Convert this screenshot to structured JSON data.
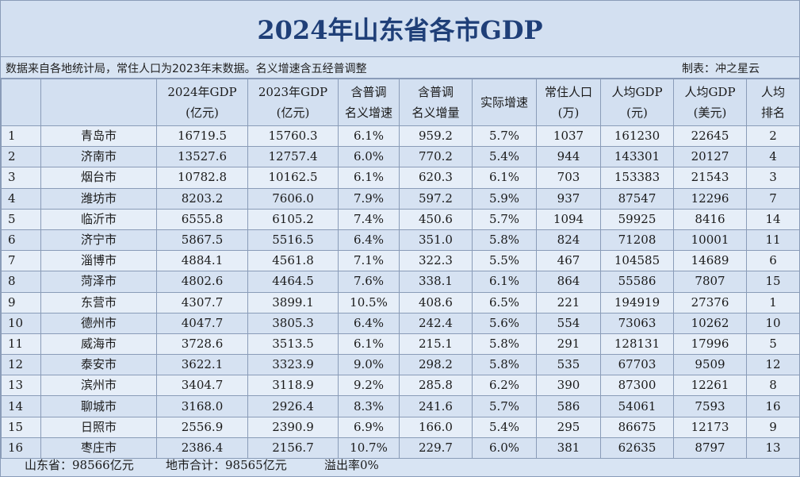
{
  "title": "2024年山东省各市GDP",
  "source_note": "数据来自各地统计局，常住人口为2023年末数据。名义增速含五经普调整",
  "maker": "制表：冲之星云",
  "columns": [
    {
      "lines": [
        ""
      ]
    },
    {
      "lines": [
        ""
      ]
    },
    {
      "lines": [
        "2024年GDP",
        "(亿元)"
      ]
    },
    {
      "lines": [
        "2023年GDP",
        "(亿元)"
      ]
    },
    {
      "lines": [
        "含普调",
        "名义增速"
      ]
    },
    {
      "lines": [
        "含普调",
        "名义增量"
      ]
    },
    {
      "lines": [
        "实际增速"
      ]
    },
    {
      "lines": [
        "常住人口",
        "(万)"
      ]
    },
    {
      "lines": [
        "人均GDP",
        "(元)"
      ]
    },
    {
      "lines": [
        "人均GDP",
        "(美元)"
      ]
    },
    {
      "lines": [
        "人均",
        "排名"
      ]
    }
  ],
  "rows": [
    [
      "1",
      "青岛市",
      "16719.5",
      "15760.3",
      "6.1%",
      "959.2",
      "5.7%",
      "1037",
      "161230",
      "22645",
      "2"
    ],
    [
      "2",
      "济南市",
      "13527.6",
      "12757.4",
      "6.0%",
      "770.2",
      "5.4%",
      "944",
      "143301",
      "20127",
      "4"
    ],
    [
      "3",
      "烟台市",
      "10782.8",
      "10162.5",
      "6.1%",
      "620.3",
      "6.1%",
      "703",
      "153383",
      "21543",
      "3"
    ],
    [
      "4",
      "潍坊市",
      "8203.2",
      "7606.0",
      "7.9%",
      "597.2",
      "5.9%",
      "937",
      "87547",
      "12296",
      "7"
    ],
    [
      "5",
      "临沂市",
      "6555.8",
      "6105.2",
      "7.4%",
      "450.6",
      "5.7%",
      "1094",
      "59925",
      "8416",
      "14"
    ],
    [
      "6",
      "济宁市",
      "5867.5",
      "5516.5",
      "6.4%",
      "351.0",
      "5.8%",
      "824",
      "71208",
      "10001",
      "11"
    ],
    [
      "7",
      "淄博市",
      "4884.1",
      "4561.8",
      "7.1%",
      "322.3",
      "5.5%",
      "467",
      "104585",
      "14689",
      "6"
    ],
    [
      "8",
      "菏泽市",
      "4802.6",
      "4464.5",
      "7.6%",
      "338.1",
      "6.1%",
      "864",
      "55586",
      "7807",
      "15"
    ],
    [
      "9",
      "东营市",
      "4307.7",
      "3899.1",
      "10.5%",
      "408.6",
      "6.5%",
      "221",
      "194919",
      "27376",
      "1"
    ],
    [
      "10",
      "德州市",
      "4047.7",
      "3805.3",
      "6.4%",
      "242.4",
      "5.6%",
      "554",
      "73063",
      "10262",
      "10"
    ],
    [
      "11",
      "威海市",
      "3728.6",
      "3513.5",
      "6.1%",
      "215.1",
      "5.8%",
      "291",
      "128131",
      "17996",
      "5"
    ],
    [
      "12",
      "泰安市",
      "3622.1",
      "3323.9",
      "9.0%",
      "298.2",
      "5.8%",
      "535",
      "67703",
      "9509",
      "12"
    ],
    [
      "13",
      "滨州市",
      "3404.7",
      "3118.9",
      "9.2%",
      "285.8",
      "6.2%",
      "390",
      "87300",
      "12261",
      "8"
    ],
    [
      "14",
      "聊城市",
      "3168.0",
      "2926.4",
      "8.3%",
      "241.6",
      "5.7%",
      "586",
      "54061",
      "7593",
      "16"
    ],
    [
      "15",
      "日照市",
      "2556.9",
      "2390.9",
      "6.9%",
      "166.0",
      "5.4%",
      "295",
      "86675",
      "12173",
      "9"
    ],
    [
      "16",
      "枣庄市",
      "2386.4",
      "2156.7",
      "10.7%",
      "229.7",
      "6.0%",
      "381",
      "62635",
      "8797",
      "13"
    ]
  ],
  "footer": {
    "province": "山东省：98566亿元",
    "city_sum": "地市合计：98565亿元",
    "overflow": "溢出率0%"
  }
}
